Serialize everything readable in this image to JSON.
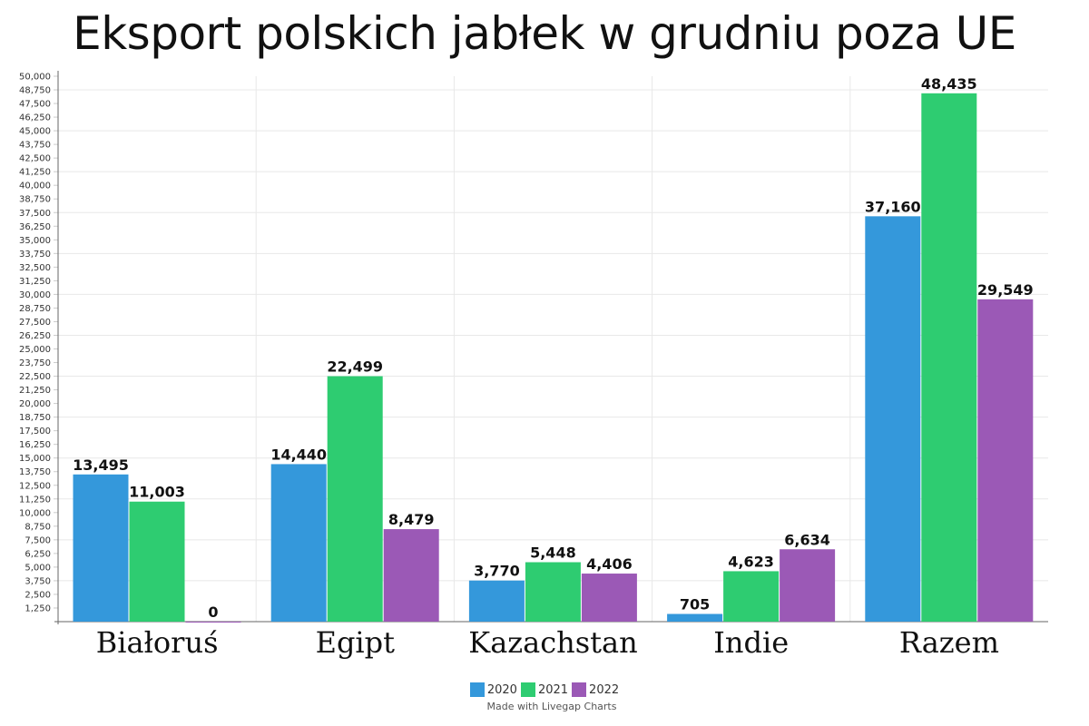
{
  "chart_data": {
    "type": "bar",
    "title": "Eksport polskich jabłek w grudniu poza UE",
    "categories": [
      "Białoruś",
      "Egipt",
      "Kazachstan",
      "Indie",
      "Razem"
    ],
    "series": [
      {
        "name": "2020",
        "color": "#3498db",
        "values": [
          13495,
          14440,
          3770,
          705,
          37160
        ]
      },
      {
        "name": "2021",
        "color": "#2ecc71",
        "values": [
          11003,
          22499,
          5448,
          4623,
          48435
        ]
      },
      {
        "name": "2022",
        "color": "#9b59b6",
        "values": [
          0,
          8479,
          4406,
          6634,
          29549
        ]
      }
    ],
    "ylim": [
      0,
      50000
    ],
    "ytick_step": 1250,
    "grid": true,
    "legend_position": "bottom",
    "credit": "Made with Livegap Charts"
  }
}
